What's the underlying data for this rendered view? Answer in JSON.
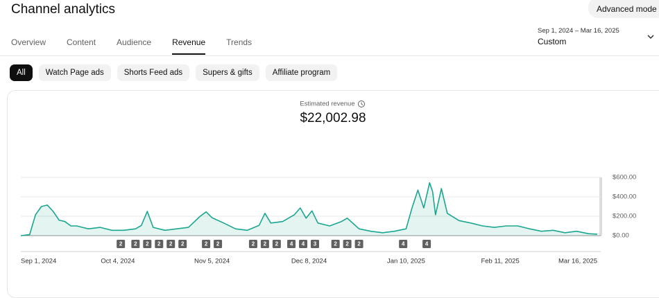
{
  "header": {
    "title": "Channel analytics",
    "button": "Advanced mode"
  },
  "tabs": [
    "Overview",
    "Content",
    "Audience",
    "Revenue",
    "Trends"
  ],
  "active_tab": 3,
  "date_range": {
    "range": "Sep 1, 2024 – Mar 16, 2025",
    "label": "Custom"
  },
  "filters": [
    "All",
    "Watch Page ads",
    "Shorts Feed ads",
    "Supers & gifts",
    "Affiliate program"
  ],
  "selected_filter": 0,
  "chart_data": {
    "type": "area",
    "title": "Estimated revenue",
    "summary_value": "$22,002.98",
    "x": [
      "2024-09-01",
      "2024-09-04",
      "2024-09-06",
      "2024-09-08",
      "2024-09-10",
      "2024-09-12",
      "2024-09-14",
      "2024-09-16",
      "2024-09-18",
      "2024-09-20",
      "2024-09-22",
      "2024-09-24",
      "2024-09-28",
      "2024-10-02",
      "2024-10-06",
      "2024-10-10",
      "2024-10-12",
      "2024-10-14",
      "2024-10-16",
      "2024-10-20",
      "2024-10-24",
      "2024-10-28",
      "2024-11-01",
      "2024-11-03",
      "2024-11-05",
      "2024-11-09",
      "2024-11-13",
      "2024-11-17",
      "2024-11-21",
      "2024-11-23",
      "2024-11-25",
      "2024-11-29",
      "2024-12-03",
      "2024-12-05",
      "2024-12-07",
      "2024-12-09",
      "2024-12-11",
      "2024-12-15",
      "2024-12-19",
      "2024-12-21",
      "2024-12-25",
      "2024-12-29",
      "2025-01-02",
      "2025-01-06",
      "2025-01-10",
      "2025-01-12",
      "2025-01-14",
      "2025-01-16",
      "2025-01-18",
      "2025-01-19",
      "2025-01-20",
      "2025-01-22",
      "2025-01-24",
      "2025-01-28",
      "2025-02-01",
      "2025-02-05",
      "2025-02-09",
      "2025-02-13",
      "2025-02-17",
      "2025-02-21",
      "2025-02-25",
      "2025-03-01",
      "2025-03-05",
      "2025-03-09",
      "2025-03-13",
      "2025-03-16"
    ],
    "values": [
      0,
      10,
      215,
      300,
      315,
      250,
      160,
      145,
      100,
      100,
      85,
      70,
      85,
      55,
      55,
      70,
      105,
      250,
      85,
      55,
      70,
      85,
      200,
      245,
      185,
      130,
      70,
      55,
      105,
      230,
      130,
      145,
      215,
      285,
      180,
      255,
      130,
      100,
      145,
      180,
      70,
      45,
      30,
      45,
      70,
      285,
      470,
      285,
      545,
      455,
      215,
      485,
      230,
      155,
      130,
      100,
      85,
      100,
      100,
      70,
      45,
      55,
      30,
      45,
      20,
      15
    ],
    "color": "#1aa68f",
    "xlim": [
      "2024-09-01",
      "2025-03-16"
    ],
    "xticks": [
      {
        "value": "2024-09-01",
        "label": "Sep 1, 2024"
      },
      {
        "value": "2024-10-04",
        "label": "Oct 4, 2024"
      },
      {
        "value": "2024-11-05",
        "label": "Nov 5, 2024"
      },
      {
        "value": "2024-12-08",
        "label": "Dec 8, 2024"
      },
      {
        "value": "2025-01-10",
        "label": "Jan 10, 2025"
      },
      {
        "value": "2025-02-11",
        "label": "Feb 11, 2025"
      },
      {
        "value": "2025-03-16",
        "label": "Mar 16, 2025"
      }
    ],
    "ylim": [
      0,
      600
    ],
    "yticks": [
      {
        "value": 0,
        "label": "$0.00"
      },
      {
        "value": 200,
        "label": "$200.00"
      },
      {
        "value": 400,
        "label": "$400.00"
      },
      {
        "value": 600,
        "label": "$600.00"
      }
    ],
    "grid": true,
    "annotations": [
      {
        "x": "2024-10-05",
        "label": "2"
      },
      {
        "x": "2024-10-10",
        "label": "2"
      },
      {
        "x": "2024-10-14",
        "label": "2"
      },
      {
        "x": "2024-10-18",
        "label": "2"
      },
      {
        "x": "2024-10-22",
        "label": "2"
      },
      {
        "x": "2024-10-26",
        "label": "2"
      },
      {
        "x": "2024-11-03",
        "label": "2"
      },
      {
        "x": "2024-11-07",
        "label": "2"
      },
      {
        "x": "2024-11-19",
        "label": "2"
      },
      {
        "x": "2024-11-23",
        "label": "2"
      },
      {
        "x": "2024-11-27",
        "label": "2"
      },
      {
        "x": "2024-12-02",
        "label": "4"
      },
      {
        "x": "2024-12-06",
        "label": "4"
      },
      {
        "x": "2024-12-10",
        "label": "3"
      },
      {
        "x": "2024-12-17",
        "label": "2"
      },
      {
        "x": "2024-12-21",
        "label": "2"
      },
      {
        "x": "2024-12-25",
        "label": "2"
      },
      {
        "x": "2025-01-09",
        "label": "4"
      },
      {
        "x": "2025-01-17",
        "label": "4"
      }
    ]
  }
}
